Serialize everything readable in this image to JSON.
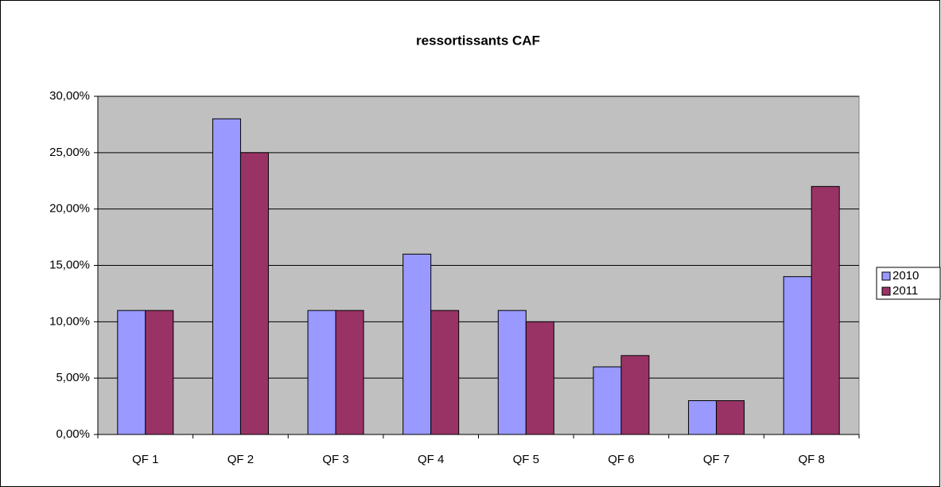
{
  "chart_data": {
    "type": "bar",
    "title": "ressortissants CAF",
    "categories": [
      "QF 1",
      "QF 2",
      "QF 3",
      "QF 4",
      "QF 5",
      "QF 6",
      "QF 7",
      "QF 8"
    ],
    "series": [
      {
        "name": "2010",
        "color": "#9999ff",
        "values": [
          11,
          28,
          11,
          16,
          11,
          6,
          3,
          14
        ]
      },
      {
        "name": "2011",
        "color": "#993366",
        "values": [
          11,
          25,
          11,
          11,
          10,
          7,
          3,
          22
        ]
      }
    ],
    "ylim": [
      0,
      30
    ],
    "yticks": [
      {
        "value": 0,
        "label": "0,00%"
      },
      {
        "value": 5,
        "label": "5,00%"
      },
      {
        "value": 10,
        "label": "10,00%"
      },
      {
        "value": 15,
        "label": "15,00%"
      },
      {
        "value": 20,
        "label": "20,00%"
      },
      {
        "value": 25,
        "label": "25,00%"
      },
      {
        "value": 30,
        "label": "30,00%"
      }
    ],
    "grid": true,
    "legend": "right"
  }
}
